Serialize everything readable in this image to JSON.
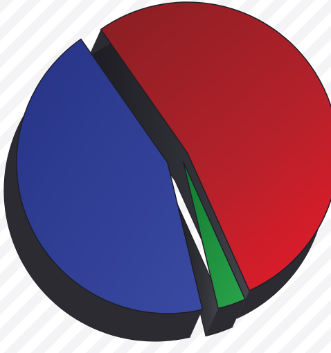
{
  "chart_data": {
    "type": "pie",
    "title": "",
    "three_d": true,
    "exploded": true,
    "slices": [
      {
        "value": 53,
        "color": "#c8222b"
      },
      {
        "value": 3,
        "color": "#1f8a3c"
      },
      {
        "value": 44,
        "color": "#2e3a92"
      }
    ],
    "side_color": "#2b2b31",
    "background": "#ffffff"
  }
}
